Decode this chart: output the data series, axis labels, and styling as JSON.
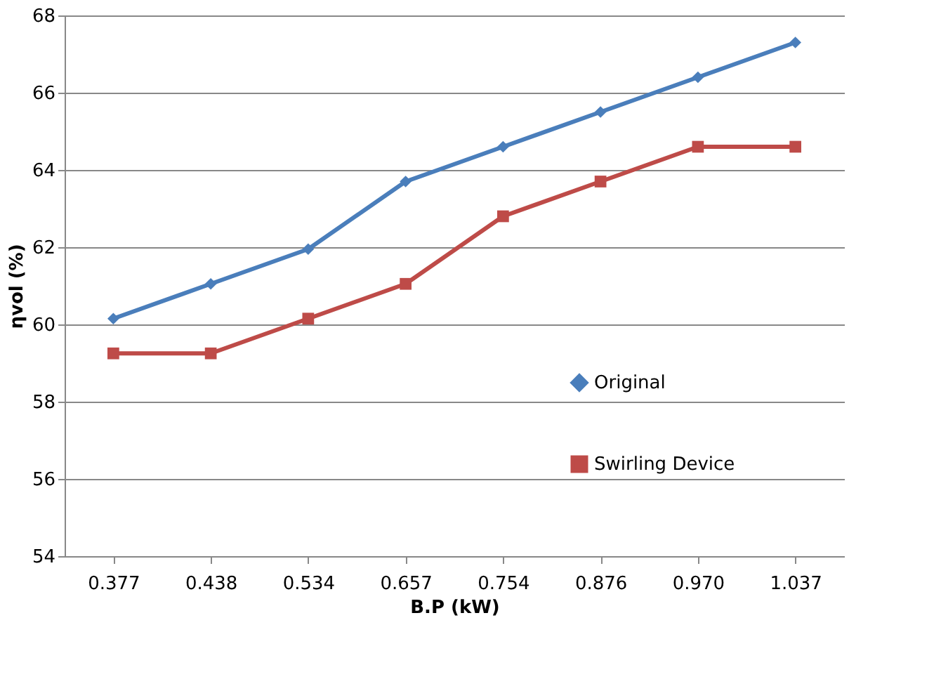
{
  "chart_data": {
    "type": "line",
    "xlabel": "B.P (kW)",
    "ylabel": "ηvol (%)",
    "categories": [
      "0.377",
      "0.438",
      "0.534",
      "0.657",
      "0.754",
      "0.876",
      "0.970",
      "1.037"
    ],
    "series": [
      {
        "name": "Original",
        "color": "#4a7ebb",
        "marker": "diamond",
        "values": [
          60.15,
          61.05,
          61.95,
          63.7,
          64.6,
          65.5,
          66.4,
          67.3
        ]
      },
      {
        "name": "Swirling Device",
        "color": "#be4b48",
        "marker": "square",
        "values": [
          59.25,
          59.25,
          60.15,
          61.05,
          62.8,
          63.7,
          64.6,
          64.6
        ]
      }
    ],
    "ylim": [
      54,
      68
    ],
    "yticks": [
      54,
      56,
      58,
      60,
      62,
      64,
      66,
      68
    ],
    "grid": "y",
    "legend": "right",
    "line_style": "solid"
  }
}
